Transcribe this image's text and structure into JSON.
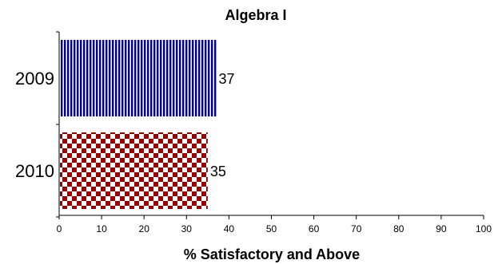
{
  "chart_data": {
    "type": "bar",
    "orientation": "horizontal",
    "title": "Algebra I",
    "xlabel": "% Satisfactory and Above",
    "ylabel": "",
    "categories": [
      "2009",
      "2010"
    ],
    "values": [
      37,
      35
    ],
    "data_labels": [
      "37",
      "35"
    ],
    "xlim": [
      0,
      100
    ],
    "xticks": [
      "0",
      "10",
      "20",
      "30",
      "40",
      "50",
      "60",
      "70",
      "80",
      "90",
      "100"
    ],
    "grid": false,
    "legend": "none",
    "bar_styles": [
      {
        "pattern": "vertical-stripes",
        "color": "#000080"
      },
      {
        "pattern": "checkerboard",
        "color": "#9b0000"
      }
    ]
  }
}
